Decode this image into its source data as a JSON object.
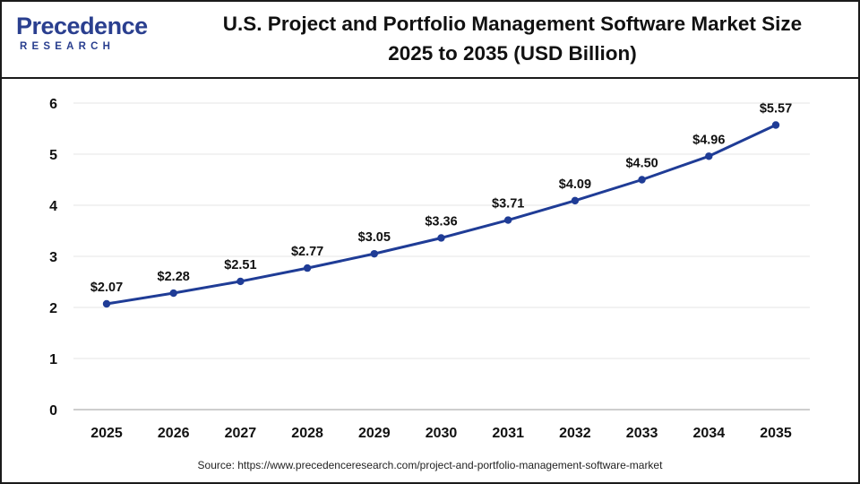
{
  "logo": {
    "main": "Precedence",
    "sub": "RESEARCH"
  },
  "title": {
    "line1": "U.S. Project and Portfolio Management Software Market Size",
    "line2": "2025 to 2035 (USD Billion)"
  },
  "source": "Source: https://www.precedenceresearch.com/project-and-portfolio-management-software-market",
  "colors": {
    "line": "#1f3c96",
    "marker": "#1f3c96",
    "logo": "#2a3f8f",
    "grid": "#e6e6e6"
  },
  "chart_data": {
    "type": "line",
    "title": "U.S. Project and Portfolio Management Software Market Size 2025 to 2035 (USD Billion)",
    "xlabel": "",
    "ylabel": "",
    "categories": [
      "2025",
      "2026",
      "2027",
      "2028",
      "2029",
      "2030",
      "2031",
      "2032",
      "2033",
      "2034",
      "2035"
    ],
    "series": [
      {
        "values": [
          2.07,
          2.28,
          2.51,
          2.77,
          3.05,
          3.36,
          3.71,
          4.09,
          4.5,
          4.96,
          5.57
        ],
        "labels": [
          "$2.07",
          "$2.28",
          "$2.51",
          "$2.77",
          "$3.05",
          "$3.36",
          "$3.71",
          "$4.09",
          "$4.50",
          "$4.96",
          "$5.57"
        ]
      }
    ],
    "ylim": [
      0,
      6
    ],
    "yticks": [
      "0",
      "1",
      "2",
      "3",
      "4",
      "5",
      "6"
    ],
    "grid": true,
    "legend": "none"
  }
}
